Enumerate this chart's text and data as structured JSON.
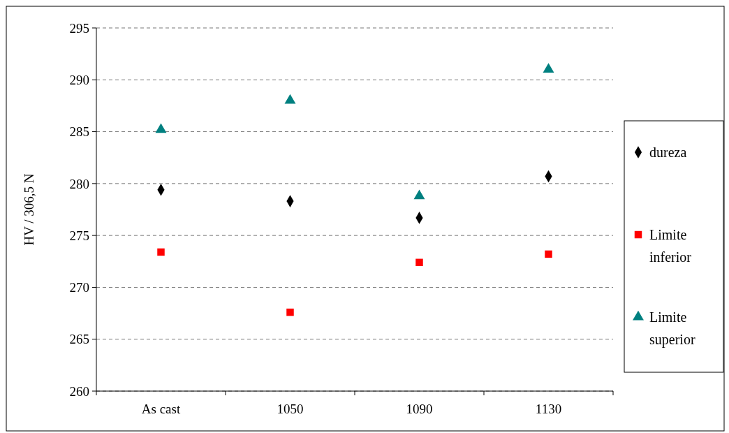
{
  "chart_data": {
    "type": "scatter",
    "ylabel": "HV / 306,5 N",
    "categories": [
      "As cast",
      "1050",
      "1090",
      "1130"
    ],
    "series": [
      {
        "name": "dureza",
        "color": "#000000",
        "marker": "diamond",
        "values": [
          279.4,
          278.3,
          276.7,
          280.7
        ]
      },
      {
        "name": "Limite inferior",
        "color": "#ff0000",
        "marker": "square",
        "values": [
          273.4,
          267.6,
          272.4,
          273.2
        ]
      },
      {
        "name": "Limite superior",
        "color": "#008080",
        "marker": "triangle",
        "values": [
          285.2,
          288.0,
          278.8,
          291.0
        ]
      }
    ],
    "ylim": [
      260,
      295
    ],
    "yticks": [
      260,
      265,
      270,
      275,
      280,
      285,
      290,
      295
    ],
    "grid": "y",
    "legend": "right"
  }
}
